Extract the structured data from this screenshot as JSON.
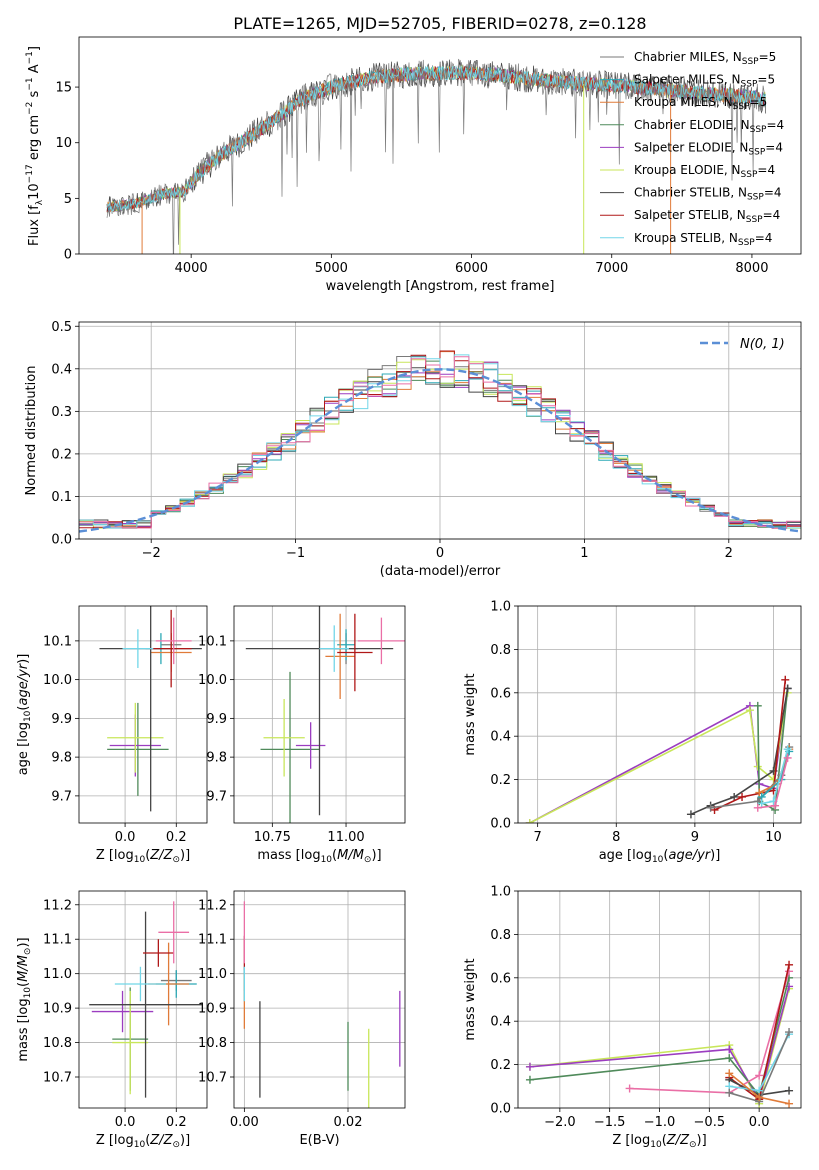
{
  "figure_title": "PLATE=1265, MJD=52705, FIBERID=0278, z=0.128",
  "models": [
    {
      "name": "Chabrier MILES",
      "nssp": "5",
      "color": "#7a7a7a"
    },
    {
      "name": "Salpeter MILES",
      "nssp": "5",
      "color": "#2ca8b5"
    },
    {
      "name": "Kroupa MILES",
      "nssp": "5",
      "color": "#e07b39"
    },
    {
      "name": "Chabrier ELODIE",
      "nssp": "4",
      "color": "#4f8a5a"
    },
    {
      "name": "Salpeter ELODIE",
      "nssp": "4",
      "color": "#9b3dc0"
    },
    {
      "name": "Kroupa ELODIE",
      "nssp": "4",
      "color": "#c8e65a"
    },
    {
      "name": "Chabrier STELIB",
      "nssp": "4",
      "color": "#454545"
    },
    {
      "name": "Salpeter STELIB",
      "nssp": "4",
      "color": "#b01818"
    },
    {
      "name": "Kroupa STELIB",
      "nssp": "4",
      "color": "#72d6e8"
    }
  ],
  "extra_color": "#ea6fa6",
  "normal_color": "#5b8fd6",
  "chart_data": [
    {
      "id": "spectrum",
      "type": "line",
      "xlabel": "wavelength [Angstrom, rest frame]",
      "ylabel": "Flux [f_λ 10^-17 erg cm^-2 s^-1 A^-1]",
      "xlim": [
        3200,
        8350
      ],
      "ylim": [
        0,
        19.5
      ],
      "xticks": [
        4000,
        5000,
        6000,
        7000,
        8000
      ],
      "yticks": [
        0,
        5,
        10,
        15
      ],
      "legend": "upper right",
      "continuum": [
        [
          3400,
          4.2
        ],
        [
          3600,
          4.5
        ],
        [
          3800,
          5.4
        ],
        [
          3950,
          5.6
        ],
        [
          4050,
          7.2
        ],
        [
          4200,
          8.8
        ],
        [
          4400,
          10.4
        ],
        [
          4600,
          12.1
        ],
        [
          4800,
          14.0
        ],
        [
          5000,
          15.0
        ],
        [
          5300,
          15.9
        ],
        [
          5600,
          16.2
        ],
        [
          5900,
          16.3
        ],
        [
          6200,
          16.1
        ],
        [
          6500,
          15.6
        ],
        [
          6800,
          15.3
        ],
        [
          7100,
          15.1
        ],
        [
          7400,
          14.7
        ],
        [
          7700,
          14.4
        ],
        [
          8000,
          14.1
        ],
        [
          8100,
          13.9
        ]
      ],
      "dropouts": [
        [
          3650,
          "#e07b39"
        ],
        [
          3920,
          "#c8e65a"
        ],
        [
          6800,
          "#c8e65a"
        ],
        [
          7420,
          "#e07b39"
        ]
      ]
    },
    {
      "id": "residuals",
      "type": "histogram",
      "xlabel": "(data-model)/error",
      "ylabel": "Normed distribution",
      "xlim": [
        -2.5,
        2.5
      ],
      "ylim": [
        0,
        0.51
      ],
      "xticks": [
        -2,
        -1,
        0,
        1,
        2
      ],
      "yticks": [
        0.0,
        0.1,
        0.2,
        0.3,
        0.4,
        0.5
      ],
      "legend_label": "N(0, 1)",
      "legend": "upper right"
    },
    {
      "id": "age_Z",
      "type": "errorbar",
      "xlabel": "Z [log10(Z/Z⊙)]",
      "ylabel": "age  [log10(age/yr)]",
      "xlim": [
        -0.18,
        0.32
      ],
      "ylim": [
        9.63,
        10.19
      ],
      "xticks": [
        0.0,
        0.2
      ],
      "yticks": [
        9.7,
        9.8,
        9.9,
        10.0,
        10.1
      ],
      "points": [
        {
          "m": 0,
          "x": 0.18,
          "y": 10.09,
          "xe": 0.04,
          "ye": 0.03
        },
        {
          "m": 1,
          "x": 0.14,
          "y": 10.08,
          "xe": 0.06,
          "ye": 0.04
        },
        {
          "m": 2,
          "x": 0.18,
          "y": 10.07,
          "xe": 0.08,
          "ye": 0.05
        },
        {
          "m": 3,
          "x": 0.05,
          "y": 9.82,
          "xe": 0.12,
          "ye": 0.12
        },
        {
          "m": 4,
          "x": 0.04,
          "y": 9.83,
          "xe": 0.1,
          "ye": 0.08
        },
        {
          "m": 5,
          "x": 0.04,
          "y": 9.85,
          "xe": 0.11,
          "ye": 0.09
        },
        {
          "m": 6,
          "x": 0.1,
          "y": 10.08,
          "xe": 0.2,
          "ye": 0.42
        },
        {
          "m": 7,
          "x": 0.18,
          "y": 10.08,
          "xe": 0.08,
          "ye": 0.1
        },
        {
          "m": 8,
          "x": 0.05,
          "y": 10.08,
          "xe": 0.06,
          "ye": 0.05
        },
        {
          "m": 9,
          "x": 0.19,
          "y": 10.1,
          "xe": 0.07,
          "ye": 0.06
        }
      ]
    },
    {
      "id": "age_mass",
      "type": "errorbar",
      "xlabel": "mass [log10(M/M⊙)]",
      "ylabel": "",
      "xlim": [
        10.62,
        11.2
      ],
      "ylim": [
        9.63,
        10.19
      ],
      "xticks": [
        10.75,
        11.0
      ],
      "yticks": [
        9.7,
        9.8,
        9.9,
        10.0,
        10.1
      ],
      "points": [
        {
          "m": 0,
          "x": 11.0,
          "y": 10.08,
          "xe": 0.04,
          "ye": 0.04
        },
        {
          "m": 1,
          "x": 11.0,
          "y": 10.09,
          "xe": 0.03,
          "ye": 0.04
        },
        {
          "m": 2,
          "x": 10.98,
          "y": 10.06,
          "xe": 0.05,
          "ye": 0.11
        },
        {
          "m": 3,
          "x": 10.81,
          "y": 9.82,
          "xe": 0.1,
          "ye": 0.2
        },
        {
          "m": 4,
          "x": 10.88,
          "y": 9.83,
          "xe": 0.05,
          "ye": 0.06
        },
        {
          "m": 5,
          "x": 10.79,
          "y": 9.85,
          "xe": 0.07,
          "ye": 0.1
        },
        {
          "m": 6,
          "x": 10.91,
          "y": 10.08,
          "xe": 0.25,
          "ye": 0.43
        },
        {
          "m": 7,
          "x": 11.03,
          "y": 10.07,
          "xe": 0.06,
          "ye": 0.1
        },
        {
          "m": 8,
          "x": 10.96,
          "y": 10.08,
          "xe": 0.05,
          "ye": 0.06
        },
        {
          "m": 9,
          "x": 11.12,
          "y": 10.1,
          "xe": 0.08,
          "ye": 0.06
        }
      ]
    },
    {
      "id": "weight_age",
      "type": "line",
      "xlabel": "age  [log10(age/yr)]",
      "ylabel": "mass weight",
      "xlim": [
        6.75,
        10.35
      ],
      "ylim": [
        0,
        1
      ],
      "xticks": [
        7,
        8,
        9,
        10
      ],
      "yticks": [
        0.0,
        0.2,
        0.4,
        0.6,
        0.8,
        1.0
      ],
      "series": [
        {
          "m": 4,
          "points": [
            [
              6.9,
              0.0
            ],
            [
              9.7,
              0.54
            ],
            [
              9.82,
              0.18
            ],
            [
              10.0,
              0.16
            ],
            [
              10.18,
              0.62
            ]
          ]
        },
        {
          "m": 5,
          "points": [
            [
              6.9,
              0.0
            ],
            [
              9.7,
              0.52
            ],
            [
              9.8,
              0.26
            ],
            [
              10.0,
              0.2
            ],
            [
              10.18,
              0.6
            ]
          ]
        },
        {
          "m": 3,
          "points": [
            [
              9.8,
              0.54
            ],
            [
              9.82,
              0.1
            ],
            [
              10.02,
              0.06
            ],
            [
              10.18,
              0.62
            ]
          ]
        },
        {
          "m": 6,
          "points": [
            [
              8.95,
              0.04
            ],
            [
              9.2,
              0.08
            ],
            [
              9.5,
              0.12
            ],
            [
              10.0,
              0.24
            ],
            [
              10.18,
              0.62
            ]
          ]
        },
        {
          "m": 7,
          "points": [
            [
              9.25,
              0.06
            ],
            [
              9.6,
              0.12
            ],
            [
              10.0,
              0.15
            ],
            [
              10.15,
              0.66
            ]
          ]
        },
        {
          "m": 0,
          "points": [
            [
              9.2,
              0.07
            ],
            [
              9.8,
              0.1
            ],
            [
              10.1,
              0.22
            ],
            [
              10.2,
              0.35
            ]
          ]
        },
        {
          "m": 2,
          "points": [
            [
              9.82,
              0.14
            ],
            [
              10.05,
              0.18
            ],
            [
              10.2,
              0.34
            ]
          ]
        },
        {
          "m": 1,
          "points": [
            [
              9.85,
              0.12
            ],
            [
              10.1,
              0.2
            ],
            [
              10.2,
              0.33
            ]
          ]
        },
        {
          "m": 8,
          "points": [
            [
              9.85,
              0.09
            ],
            [
              10.0,
              0.1
            ],
            [
              10.18,
              0.34
            ]
          ]
        },
        {
          "m": 9,
          "points": [
            [
              9.8,
              0.07
            ],
            [
              10.02,
              0.08
            ],
            [
              10.18,
              0.3
            ]
          ]
        }
      ]
    },
    {
      "id": "mass_Z",
      "type": "errorbar",
      "xlabel": "Z [log10(Z/Z⊙)]",
      "ylabel": "mass [log10(M/M⊙)]",
      "xlim": [
        -0.18,
        0.32
      ],
      "ylim": [
        10.61,
        11.24
      ],
      "xticks": [
        0.0,
        0.2
      ],
      "yticks": [
        10.7,
        10.8,
        10.9,
        11.0,
        11.1,
        11.2
      ],
      "points": [
        {
          "m": 0,
          "x": 0.2,
          "y": 10.98,
          "xe": 0.06,
          "ye": 0.03
        },
        {
          "m": 1,
          "x": 0.2,
          "y": 10.97,
          "xe": 0.08,
          "ye": 0.04
        },
        {
          "m": 2,
          "x": 0.17,
          "y": 10.97,
          "xe": 0.08,
          "ye": 0.12
        },
        {
          "m": 3,
          "x": 0.02,
          "y": 10.81,
          "xe": 0.07,
          "ye": 0.15
        },
        {
          "m": 4,
          "x": -0.01,
          "y": 10.89,
          "xe": 0.12,
          "ye": 0.06
        },
        {
          "m": 5,
          "x": 0.02,
          "y": 10.8,
          "xe": 0.07,
          "ye": 0.15
        },
        {
          "m": 6,
          "x": 0.08,
          "y": 10.91,
          "xe": 0.22,
          "ye": 0.27
        },
        {
          "m": 7,
          "x": 0.13,
          "y": 11.06,
          "xe": 0.06,
          "ye": 0.04
        },
        {
          "m": 8,
          "x": 0.06,
          "y": 10.97,
          "xe": 0.1,
          "ye": 0.05
        },
        {
          "m": 9,
          "x": 0.19,
          "y": 11.12,
          "xe": 0.06,
          "ye": 0.09
        }
      ]
    },
    {
      "id": "mass_ebv",
      "type": "errorbar",
      "xlabel": "E(B-V)",
      "ylabel": "",
      "xlim": [
        -0.002,
        0.031
      ],
      "ylim": [
        10.61,
        11.24
      ],
      "xticks": [
        0.0,
        0.02
      ],
      "yticks": [
        10.7,
        10.8,
        10.9,
        11.0,
        11.1,
        11.2
      ],
      "points": [
        {
          "m": 0,
          "x": 0.0,
          "y": 10.98,
          "xe": 0.0,
          "ye": 0.03
        },
        {
          "m": 1,
          "x": 0.0,
          "y": 10.97,
          "xe": 0.0,
          "ye": 0.05
        },
        {
          "m": 2,
          "x": 0.0,
          "y": 10.92,
          "xe": 0.0,
          "ye": 0.08
        },
        {
          "m": 3,
          "x": 0.02,
          "y": 10.76,
          "xe": 0.0,
          "ye": 0.1
        },
        {
          "m": 4,
          "x": 0.03,
          "y": 10.84,
          "xe": 0.0,
          "ye": 0.11
        },
        {
          "m": 5,
          "x": 0.024,
          "y": 10.72,
          "xe": 0.0,
          "ye": 0.12
        },
        {
          "m": 6,
          "x": 0.003,
          "y": 10.78,
          "xe": 0.0,
          "ye": 0.14
        },
        {
          "m": 7,
          "x": 0.0,
          "y": 11.06,
          "xe": 0.0,
          "ye": 0.05
        },
        {
          "m": 8,
          "x": 0.0,
          "y": 10.97,
          "xe": 0.0,
          "ye": 0.05
        },
        {
          "m": 9,
          "x": 0.0,
          "y": 11.12,
          "xe": 0.0,
          "ye": 0.09
        }
      ]
    },
    {
      "id": "weight_Z",
      "type": "line",
      "xlabel": "Z [log10(Z/Z⊙)]",
      "ylabel": "mass weight",
      "xlim": [
        -2.42,
        0.42
      ],
      "ylim": [
        0,
        1
      ],
      "xticks": [
        -2.0,
        -1.5,
        -1.0,
        -0.5,
        0.0
      ],
      "yticks": [
        0.0,
        0.2,
        0.4,
        0.6,
        0.8,
        1.0
      ],
      "series": [
        {
          "m": 5,
          "points": [
            [
              -2.3,
              0.19
            ],
            [
              -0.3,
              0.29
            ],
            [
              0.0,
              0.02
            ],
            [
              0.3,
              0.55
            ]
          ]
        },
        {
          "m": 4,
          "points": [
            [
              -2.3,
              0.19
            ],
            [
              -0.3,
              0.27
            ],
            [
              0.0,
              0.04
            ],
            [
              0.3,
              0.56
            ]
          ]
        },
        {
          "m": 3,
          "points": [
            [
              -2.3,
              0.13
            ],
            [
              -0.3,
              0.23
            ],
            [
              0.0,
              0.06
            ],
            [
              0.3,
              0.6
            ]
          ]
        },
        {
          "m": 9,
          "points": [
            [
              -1.3,
              0.09
            ],
            [
              -0.3,
              0.07
            ],
            [
              0.0,
              0.15
            ],
            [
              0.3,
              0.63
            ]
          ]
        },
        {
          "m": 7,
          "points": [
            [
              -0.3,
              0.14
            ],
            [
              0.0,
              0.04
            ],
            [
              0.3,
              0.66
            ]
          ]
        },
        {
          "m": 6,
          "points": [
            [
              -0.3,
              0.13
            ],
            [
              0.0,
              0.06
            ],
            [
              0.3,
              0.08
            ]
          ]
        },
        {
          "m": 8,
          "points": [
            [
              -0.3,
              0.1
            ],
            [
              0.0,
              0.08
            ],
            [
              0.3,
              0.34
            ]
          ]
        },
        {
          "m": 0,
          "points": [
            [
              -0.3,
              0.07
            ],
            [
              0.0,
              0.03
            ],
            [
              0.3,
              0.35
            ]
          ]
        },
        {
          "m": 2,
          "points": [
            [
              -0.3,
              0.16
            ],
            [
              0.0,
              0.05
            ],
            [
              0.3,
              0.02
            ]
          ]
        }
      ]
    }
  ]
}
